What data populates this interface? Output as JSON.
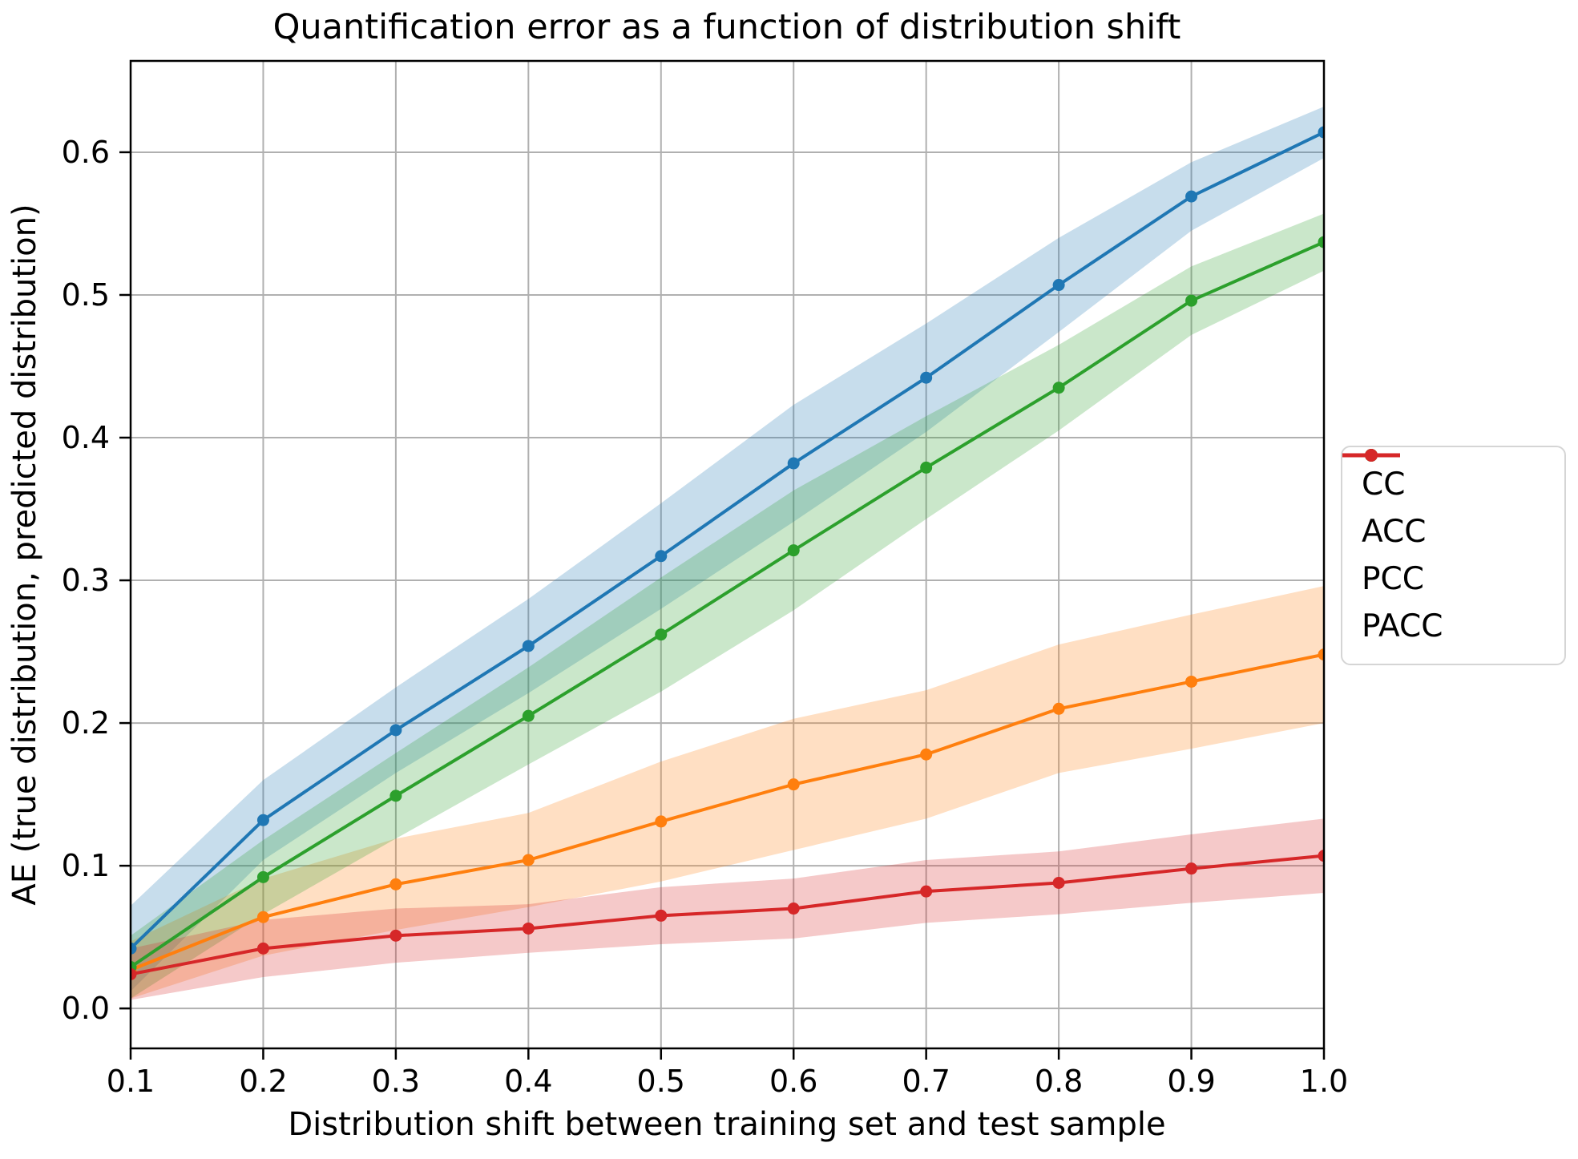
{
  "page": {
    "background": "#ffffff"
  },
  "chart_data": {
    "type": "line",
    "title": "Quantification error as a function of distribution shift",
    "xlabel": "Distribution shift between training set and test sample",
    "ylabel": "AE (true distribution, predicted distribution)",
    "x": [
      0.1,
      0.2,
      0.3,
      0.4,
      0.5,
      0.6,
      0.7,
      0.8,
      0.9,
      1.0
    ],
    "xlim": [
      0.1,
      1.0
    ],
    "ylim": [
      -0.028,
      0.664
    ],
    "xticks": [
      0.1,
      0.2,
      0.3,
      0.4,
      0.5,
      0.6,
      0.7,
      0.8,
      0.9,
      1.0
    ],
    "xtick_labels": [
      "0.1",
      "0.2",
      "0.3",
      "0.4",
      "0.5",
      "0.6",
      "0.7",
      "0.8",
      "0.9",
      "1.0"
    ],
    "yticks": [
      0.0,
      0.1,
      0.2,
      0.3,
      0.4,
      0.5,
      0.6
    ],
    "ytick_labels": [
      "0.0",
      "0.1",
      "0.2",
      "0.3",
      "0.4",
      "0.5",
      "0.6"
    ],
    "grid": true,
    "grid_color": "#b0b0b0",
    "axis_color": "#000000",
    "band_opacity": 0.25,
    "legend": {
      "position": "outside-right",
      "border_color": "#d5d5d5",
      "items": [
        "CC",
        "ACC",
        "PCC",
        "PACC"
      ]
    },
    "series": [
      {
        "name": "CC",
        "color": "#1f77b4",
        "values": [
          0.042,
          0.132,
          0.195,
          0.254,
          0.317,
          0.382,
          0.442,
          0.507,
          0.569,
          0.614
        ],
        "band_half_width": [
          0.03,
          0.028,
          0.03,
          0.033,
          0.037,
          0.041,
          0.038,
          0.033,
          0.024,
          0.018
        ]
      },
      {
        "name": "ACC",
        "color": "#ff7f0e",
        "values": [
          0.027,
          0.064,
          0.087,
          0.104,
          0.131,
          0.157,
          0.178,
          0.21,
          0.229,
          0.248
        ],
        "band_half_width": [
          0.02,
          0.027,
          0.032,
          0.033,
          0.042,
          0.046,
          0.045,
          0.045,
          0.047,
          0.048
        ]
      },
      {
        "name": "PCC",
        "color": "#2ca02c",
        "values": [
          0.029,
          0.092,
          0.149,
          0.205,
          0.262,
          0.321,
          0.379,
          0.435,
          0.496,
          0.537
        ],
        "band_half_width": [
          0.022,
          0.026,
          0.03,
          0.034,
          0.04,
          0.042,
          0.036,
          0.03,
          0.024,
          0.02
        ]
      },
      {
        "name": "PACC",
        "color": "#d62728",
        "values": [
          0.024,
          0.042,
          0.051,
          0.056,
          0.065,
          0.07,
          0.082,
          0.088,
          0.098,
          0.107
        ],
        "band_half_width": [
          0.018,
          0.02,
          0.019,
          0.017,
          0.02,
          0.021,
          0.022,
          0.022,
          0.024,
          0.026
        ]
      }
    ]
  }
}
